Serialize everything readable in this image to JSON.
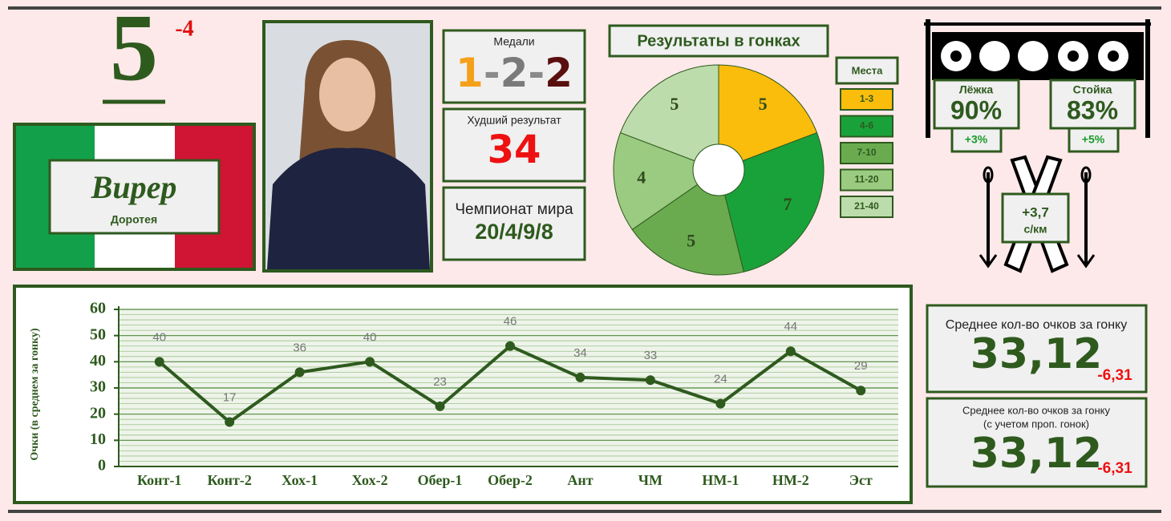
{
  "rank": {
    "value": "5",
    "change": "-4"
  },
  "athlete": {
    "surname": "Вирер",
    "name": "Доротея"
  },
  "medals": {
    "label": "Медали",
    "gold": "1",
    "silver": "2",
    "bronze": "2",
    "separator": "-"
  },
  "worst_result": {
    "label": "Худший результат",
    "value": "34"
  },
  "world_championship": {
    "label": "Чемпионат мира",
    "value": "20/4/9/8"
  },
  "shooting": {
    "prone": {
      "label": "Лёжка",
      "value": "90%",
      "change": "+3%"
    },
    "standing": {
      "label": "Стойка",
      "value": "83%",
      "change": "+5%"
    }
  },
  "ski_speed": {
    "value": "+3,7",
    "unit": "с/км"
  },
  "averages": [
    {
      "label_lines": [
        "Среднее кол-во очков за гонку"
      ],
      "value": "33,12",
      "change": "-6,31"
    },
    {
      "label_lines": [
        "Среднее кол-во очков за гонку",
        "(с учетом проп. гонок)"
      ],
      "value": "33,12",
      "change": "-6,31"
    }
  ],
  "chart_data": [
    {
      "type": "pie",
      "title": "Результаты в гонках",
      "legend_title": "Места",
      "donut": true,
      "categories": [
        "1-3",
        "4-6",
        "7-10",
        "11-20",
        "21-40"
      ],
      "values": [
        5,
        7,
        5,
        4,
        5
      ],
      "colors": [
        "#fbbd0c",
        "#1aa23a",
        "#6aab4f",
        "#9bcb80",
        "#bddcab"
      ]
    },
    {
      "type": "line",
      "y_label": "Очки (в среднем за гонку)",
      "categories": [
        "Конт-1",
        "Конт-2",
        "Хох-1",
        "Хох-2",
        "Обер-1",
        "Обер-2",
        "Ант",
        "ЧМ",
        "НМ-1",
        "НМ-2",
        "Эст"
      ],
      "values": [
        40,
        17,
        36,
        40,
        23,
        46,
        34,
        33,
        24,
        44,
        29
      ],
      "color": "#2e5a1e",
      "ylim": [
        0,
        60
      ],
      "yticks": [
        0,
        10,
        20,
        30,
        40,
        50,
        60
      ],
      "minor_yticks": [
        2,
        4,
        6,
        8,
        12,
        14,
        16,
        18,
        22,
        24,
        26,
        28,
        32,
        34,
        36,
        38,
        42,
        44,
        46,
        48,
        52,
        54,
        56,
        58
      ],
      "grid": true
    }
  ]
}
